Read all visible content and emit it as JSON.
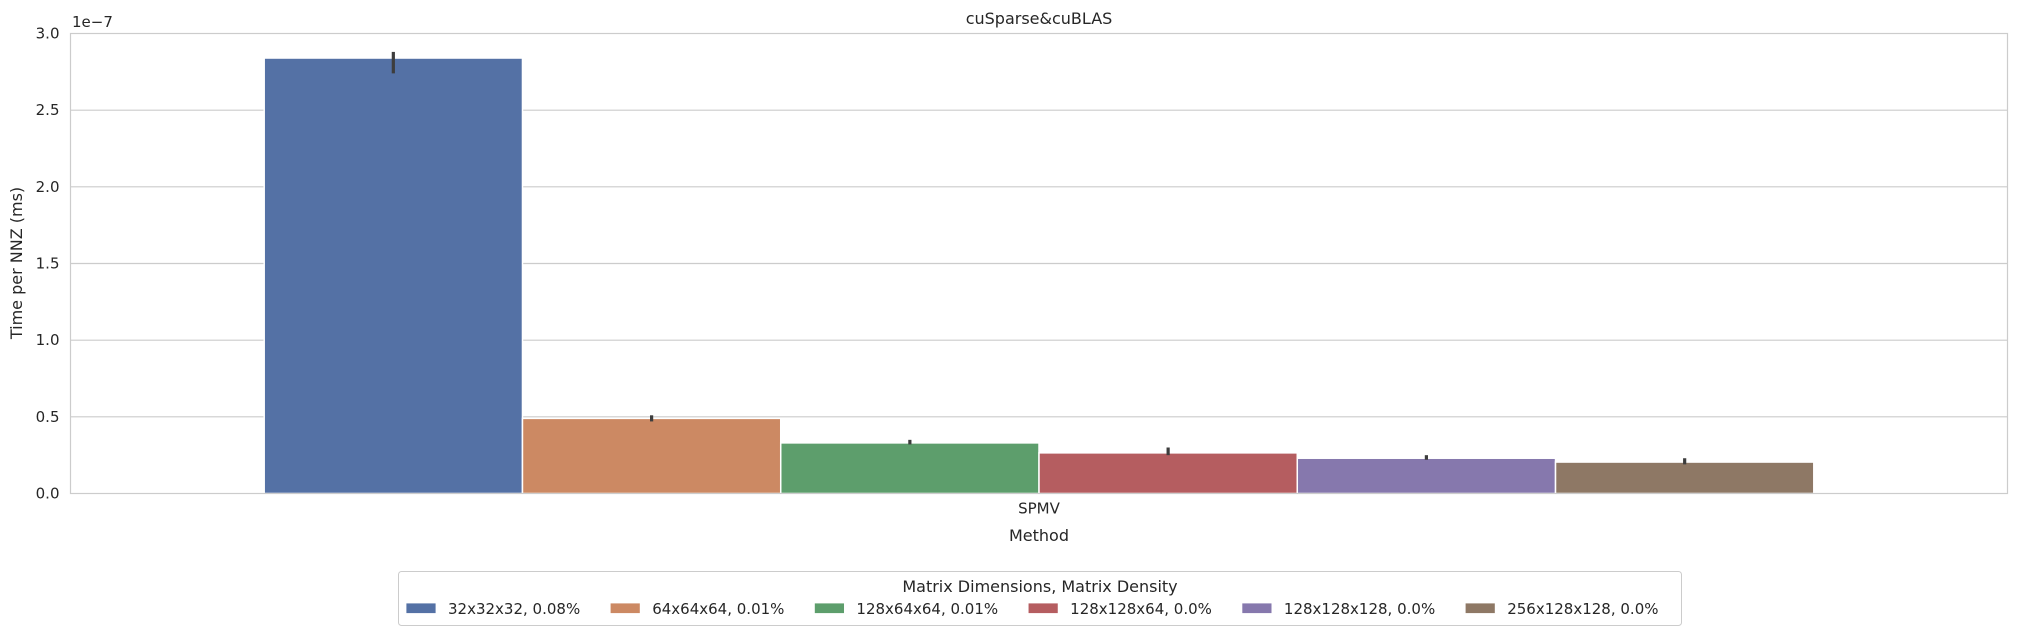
{
  "chart_data": {
    "type": "bar",
    "title": "cuSparse&cuBLAS",
    "xlabel": "Method",
    "ylabel": "Time per NNZ (ms)",
    "y_offset_label": "1e−7",
    "ylim": [
      0,
      3.0
    ],
    "yticks": [
      0.0,
      0.5,
      1.0,
      1.5,
      2.0,
      2.5,
      3.0
    ],
    "ytick_labels": [
      "0.0",
      "0.5",
      "1.0",
      "1.5",
      "2.0",
      "2.5",
      "3.0"
    ],
    "categories": [
      "SPMV"
    ],
    "grid": true,
    "legend": {
      "title": "Matrix Dimensions, Matrix Density",
      "placement": "bottom-center"
    },
    "series": [
      {
        "name": "32x32x32, 0.08%",
        "color": "#5471a5",
        "values": [
          2.84
        ],
        "error": [
          [
            2.74,
            2.88
          ]
        ]
      },
      {
        "name": "64x64x64, 0.01%",
        "color": "#cc8963",
        "values": [
          0.49
        ],
        "error": [
          [
            0.47,
            0.51
          ]
        ]
      },
      {
        "name": "128x64x64, 0.01%",
        "color": "#5d9e6c",
        "values": [
          0.33
        ],
        "error": [
          [
            0.32,
            0.35
          ]
        ]
      },
      {
        "name": "128x128x64, 0.0%",
        "color": "#b55d60",
        "values": [
          0.265
        ],
        "error": [
          [
            0.25,
            0.3
          ]
        ]
      },
      {
        "name": "128x128x128, 0.0%",
        "color": "#8678ad",
        "values": [
          0.23
        ],
        "error": [
          [
            0.22,
            0.25
          ]
        ]
      },
      {
        "name": "256x128x128, 0.0%",
        "color": "#8e7865",
        "values": [
          0.205
        ],
        "error": [
          [
            0.19,
            0.23
          ]
        ]
      }
    ]
  }
}
